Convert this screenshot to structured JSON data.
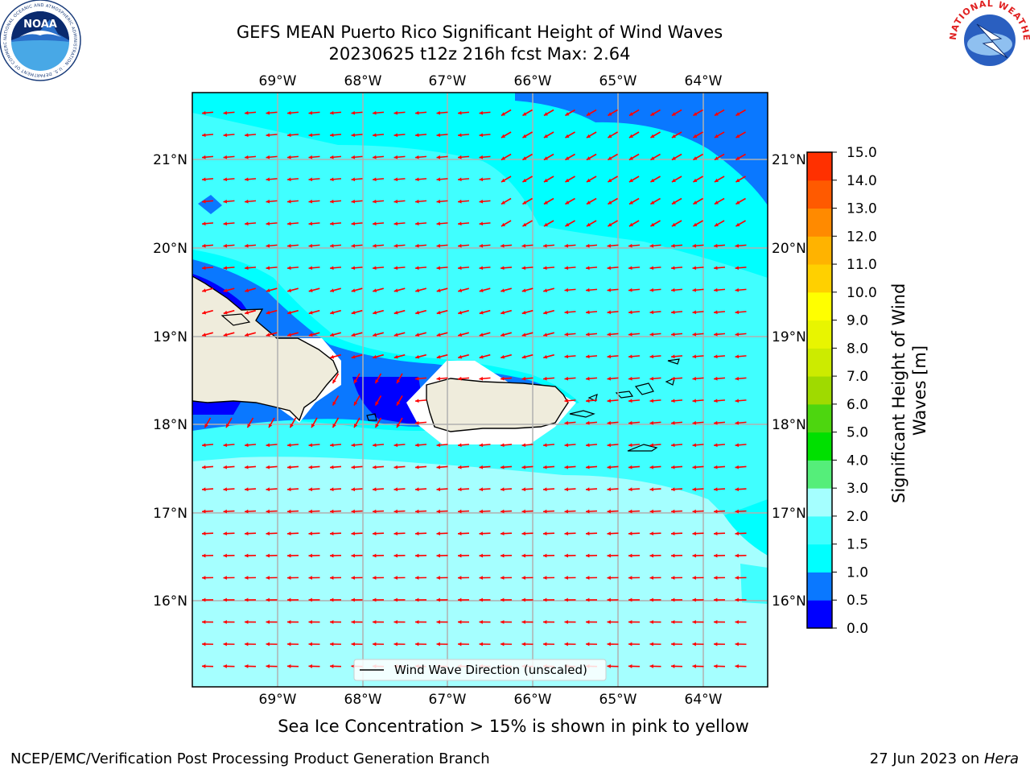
{
  "header": {
    "title_line1": "GEFS MEAN Puerto Rico Significant Height of Wind Waves",
    "title_line2": "20230625 t12z 216h fcst   Max: 2.64"
  },
  "logos": {
    "noaa_text": "NOAA",
    "noaa_ring_text": "NATIONAL OCEANIC AND ATMOSPHERIC ADMINISTRATION · U.S. DEPARTMENT OF COMMERCE",
    "nws_ring_text": "NATIONAL WEATHER SERVICE"
  },
  "map": {
    "lon_labels": [
      "69°W",
      "68°W",
      "67°W",
      "66°W",
      "65°W",
      "64°W"
    ],
    "lat_labels": [
      "21°N",
      "20°N",
      "19°N",
      "18°N",
      "17°N",
      "16°N"
    ],
    "legend_label": "Wind Wave Direction (unscaled)",
    "land_color": "#efecdc",
    "arrow_color": "#ff0000"
  },
  "colorbar": {
    "label": "Significant Height of Wind Waves [m]",
    "ticks": [
      "0.0",
      "0.5",
      "1.0",
      "1.5",
      "2.0",
      "3.0",
      "4.0",
      "5.0",
      "6.0",
      "7.0",
      "8.0",
      "9.0",
      "10.0",
      "11.0",
      "12.0",
      "13.0",
      "14.0",
      "15.0"
    ],
    "colors": [
      "#0000ff",
      "#0a78ff",
      "#00ffff",
      "#40ffff",
      "#a5ffff",
      "#55ee7a",
      "#00e000",
      "#4dd60f",
      "#9fda00",
      "#cceb00",
      "#e8f500",
      "#ffff00",
      "#ffd000",
      "#ffb300",
      "#ff8a00",
      "#ff5a00",
      "#ff3000",
      "#ff0000"
    ]
  },
  "note": "Sea Ice Concentration > 15% is shown in pink to yellow",
  "footer": {
    "left": "NCEP/EMC/Verification Post Processing Product Generation Branch",
    "right_prefix": "27 Jun 2023 on ",
    "right_host": "Hera"
  }
}
